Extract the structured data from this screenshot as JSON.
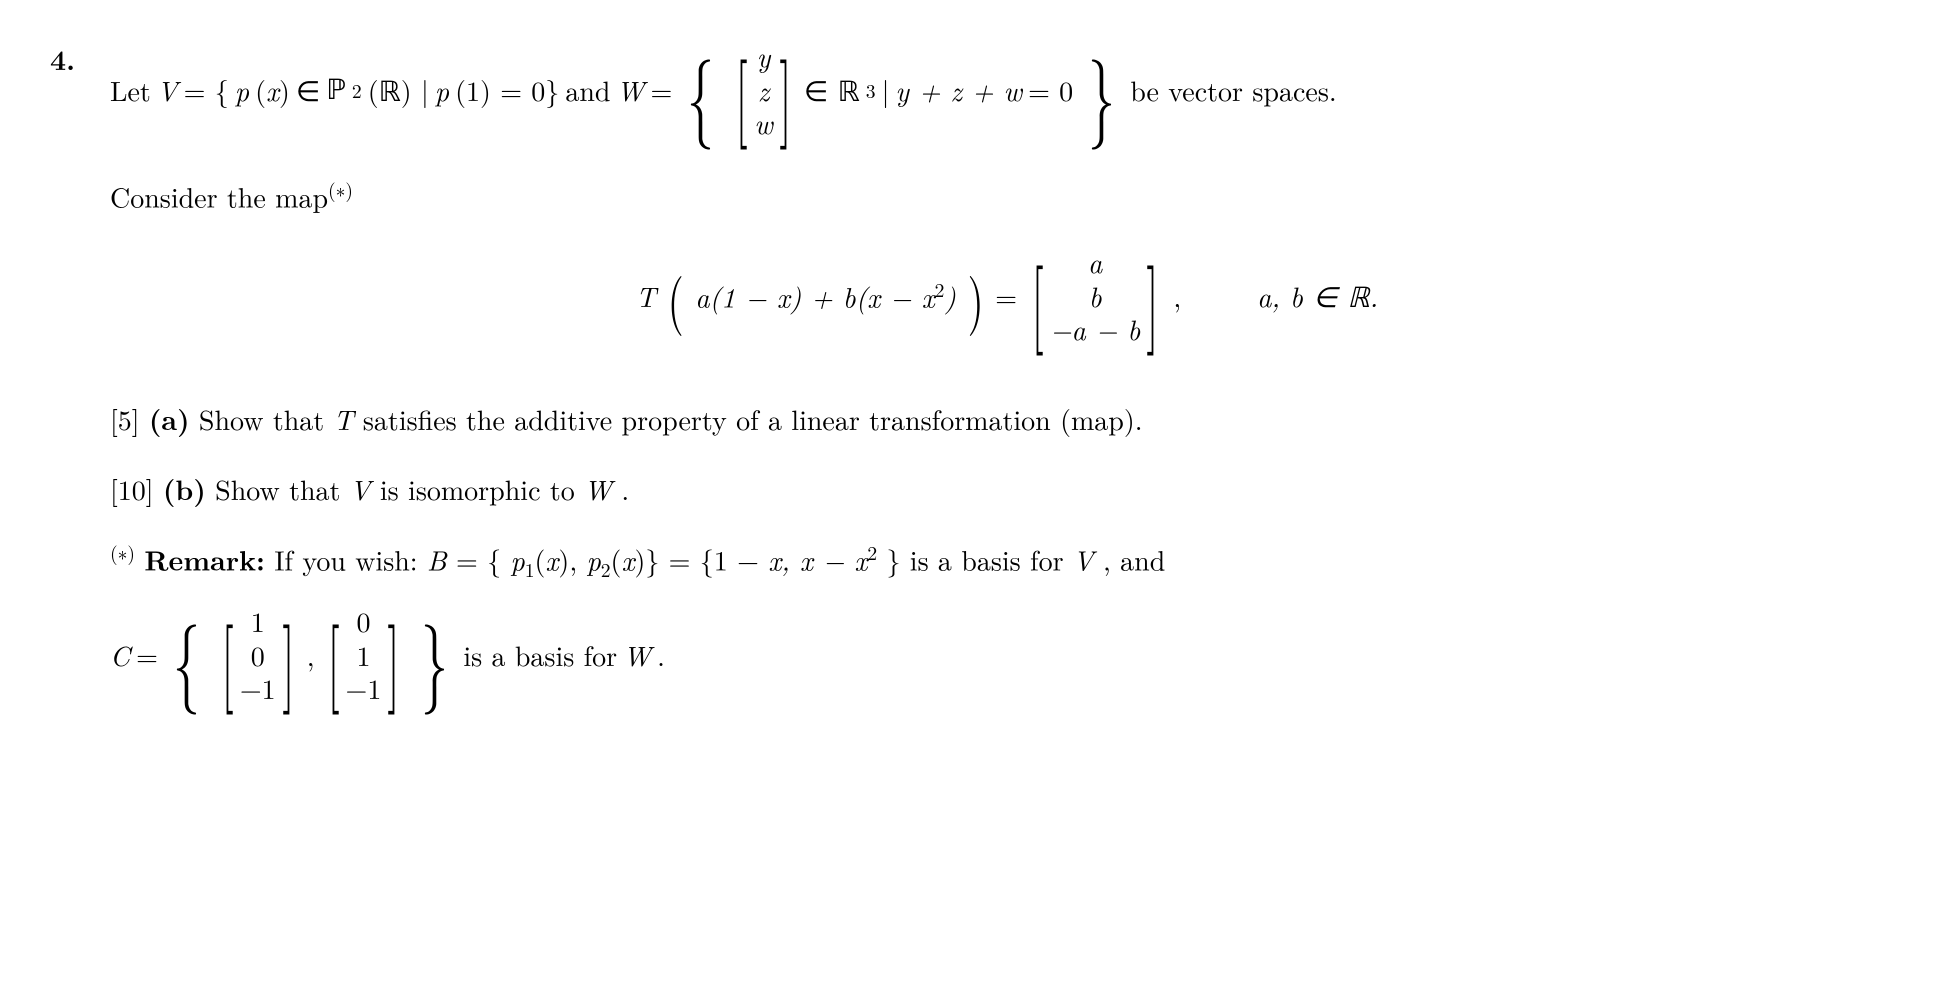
{
  "problem_number": "4.",
  "line1": {
    "let": "Let ",
    "V": "V",
    "eq1": " = {",
    "px": "p",
    "paren_x": "(x)",
    "in": " ∈ ",
    "P2R": "ℙ",
    "P2R_sub": "2",
    "P2R_paren": "(ℝ) | ",
    "p1": "p",
    "p1_paren": "(1) = 0} ",
    "and": "and ",
    "W": "W",
    "eq2": " = ",
    "vec_y": "y",
    "vec_z": "z",
    "vec_w": "w",
    "in_R3": " ∈ ℝ",
    "R3_sup": "3",
    "cond": " | ",
    "cond_eq": "y + z + w ",
    "cond_zero": "= 0",
    "be": " be vector spaces."
  },
  "consider": {
    "text": "Consider the map",
    "sup": "(∗)"
  },
  "equation": {
    "T": "T",
    "arg": "a(1 − x) + b(x − x",
    "arg_sup": "2",
    "arg_end": ")",
    "eq": " = ",
    "vec1": "a",
    "vec2": "b",
    "vec3": "−a − b",
    "comma": " ,",
    "ab": "a, b ∈ ℝ."
  },
  "part_a": {
    "marks": "[5]",
    "label": "(a)",
    "text": " Show that ",
    "T": "T",
    "text2": " satisfies the additive property of a linear transformation (map)."
  },
  "part_b": {
    "marks": "[10]",
    "label": "(b)",
    "text": " Show that ",
    "V": "V",
    "text2": " is isomorphic to ",
    "W": "W",
    "text3": "."
  },
  "remark": {
    "sup": "(∗)",
    "label": "Remark:",
    "text": " If you wish:  ",
    "B": "B",
    "eq": " = {",
    "p1": "p",
    "p1_sub": "1",
    "p1_x": "(x), ",
    "p2": "p",
    "p2_sub": "2",
    "p2_x": "(x)} = {1 − ",
    "x1": "x, x − x",
    "x2_sup": "2",
    "end": "} is a basis for ",
    "V": "V",
    "comma": ", and"
  },
  "basis_c": {
    "C": "C",
    "eq": " = ",
    "v1_1": "1",
    "v1_2": "0",
    "v1_3": "−1",
    "comma": " , ",
    "v2_1": "0",
    "v2_2": "1",
    "v2_3": "−1",
    "text": " is a basis for ",
    "W": "W",
    "period": "."
  }
}
